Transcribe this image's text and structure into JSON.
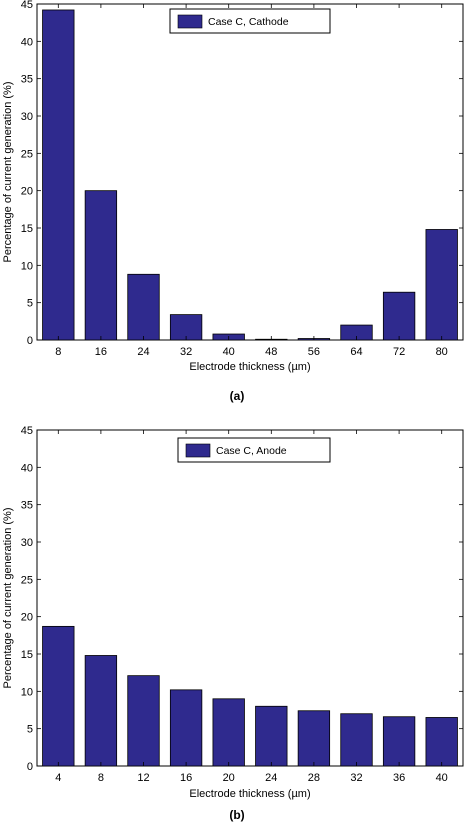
{
  "colors": {
    "bar": "#2f2a8e",
    "axis": "#000000"
  },
  "chart_data": [
    {
      "type": "bar",
      "panel_label": "(a)",
      "categories": [
        "8",
        "16",
        "24",
        "32",
        "40",
        "48",
        "56",
        "64",
        "72",
        "80"
      ],
      "values": [
        44.2,
        20.0,
        8.8,
        3.4,
        0.8,
        0.1,
        0.2,
        2.0,
        6.4,
        14.8
      ],
      "xlabel": "Electrode thickness (µm)",
      "ylabel": "Percentage of current generation (%)",
      "ylim": [
        0,
        45
      ],
      "yticks": [
        0,
        5,
        10,
        15,
        20,
        25,
        30,
        35,
        40,
        45
      ],
      "series": [
        {
          "name": "Case C, Cathode",
          "values": [
            44.2,
            20.0,
            8.8,
            3.4,
            0.8,
            0.1,
            0.2,
            2.0,
            6.4,
            14.8
          ]
        }
      ],
      "legend": "top-center",
      "grid": false
    },
    {
      "type": "bar",
      "panel_label": "(b)",
      "categories": [
        "4",
        "8",
        "12",
        "16",
        "20",
        "24",
        "28",
        "32",
        "36",
        "40"
      ],
      "values": [
        18.7,
        14.8,
        12.1,
        10.2,
        9.0,
        8.0,
        7.4,
        7.0,
        6.6,
        6.5
      ],
      "xlabel": "Electrode thickness (µm)",
      "ylabel": "Percentage of current generation (%)",
      "ylim": [
        0,
        45
      ],
      "yticks": [
        0,
        5,
        10,
        15,
        20,
        25,
        30,
        35,
        40,
        45
      ],
      "series": [
        {
          "name": "Case C, Anode",
          "values": [
            18.7,
            14.8,
            12.1,
            10.2,
            9.0,
            8.0,
            7.4,
            7.0,
            6.6,
            6.5
          ]
        }
      ],
      "legend": "top-center",
      "grid": false
    }
  ]
}
